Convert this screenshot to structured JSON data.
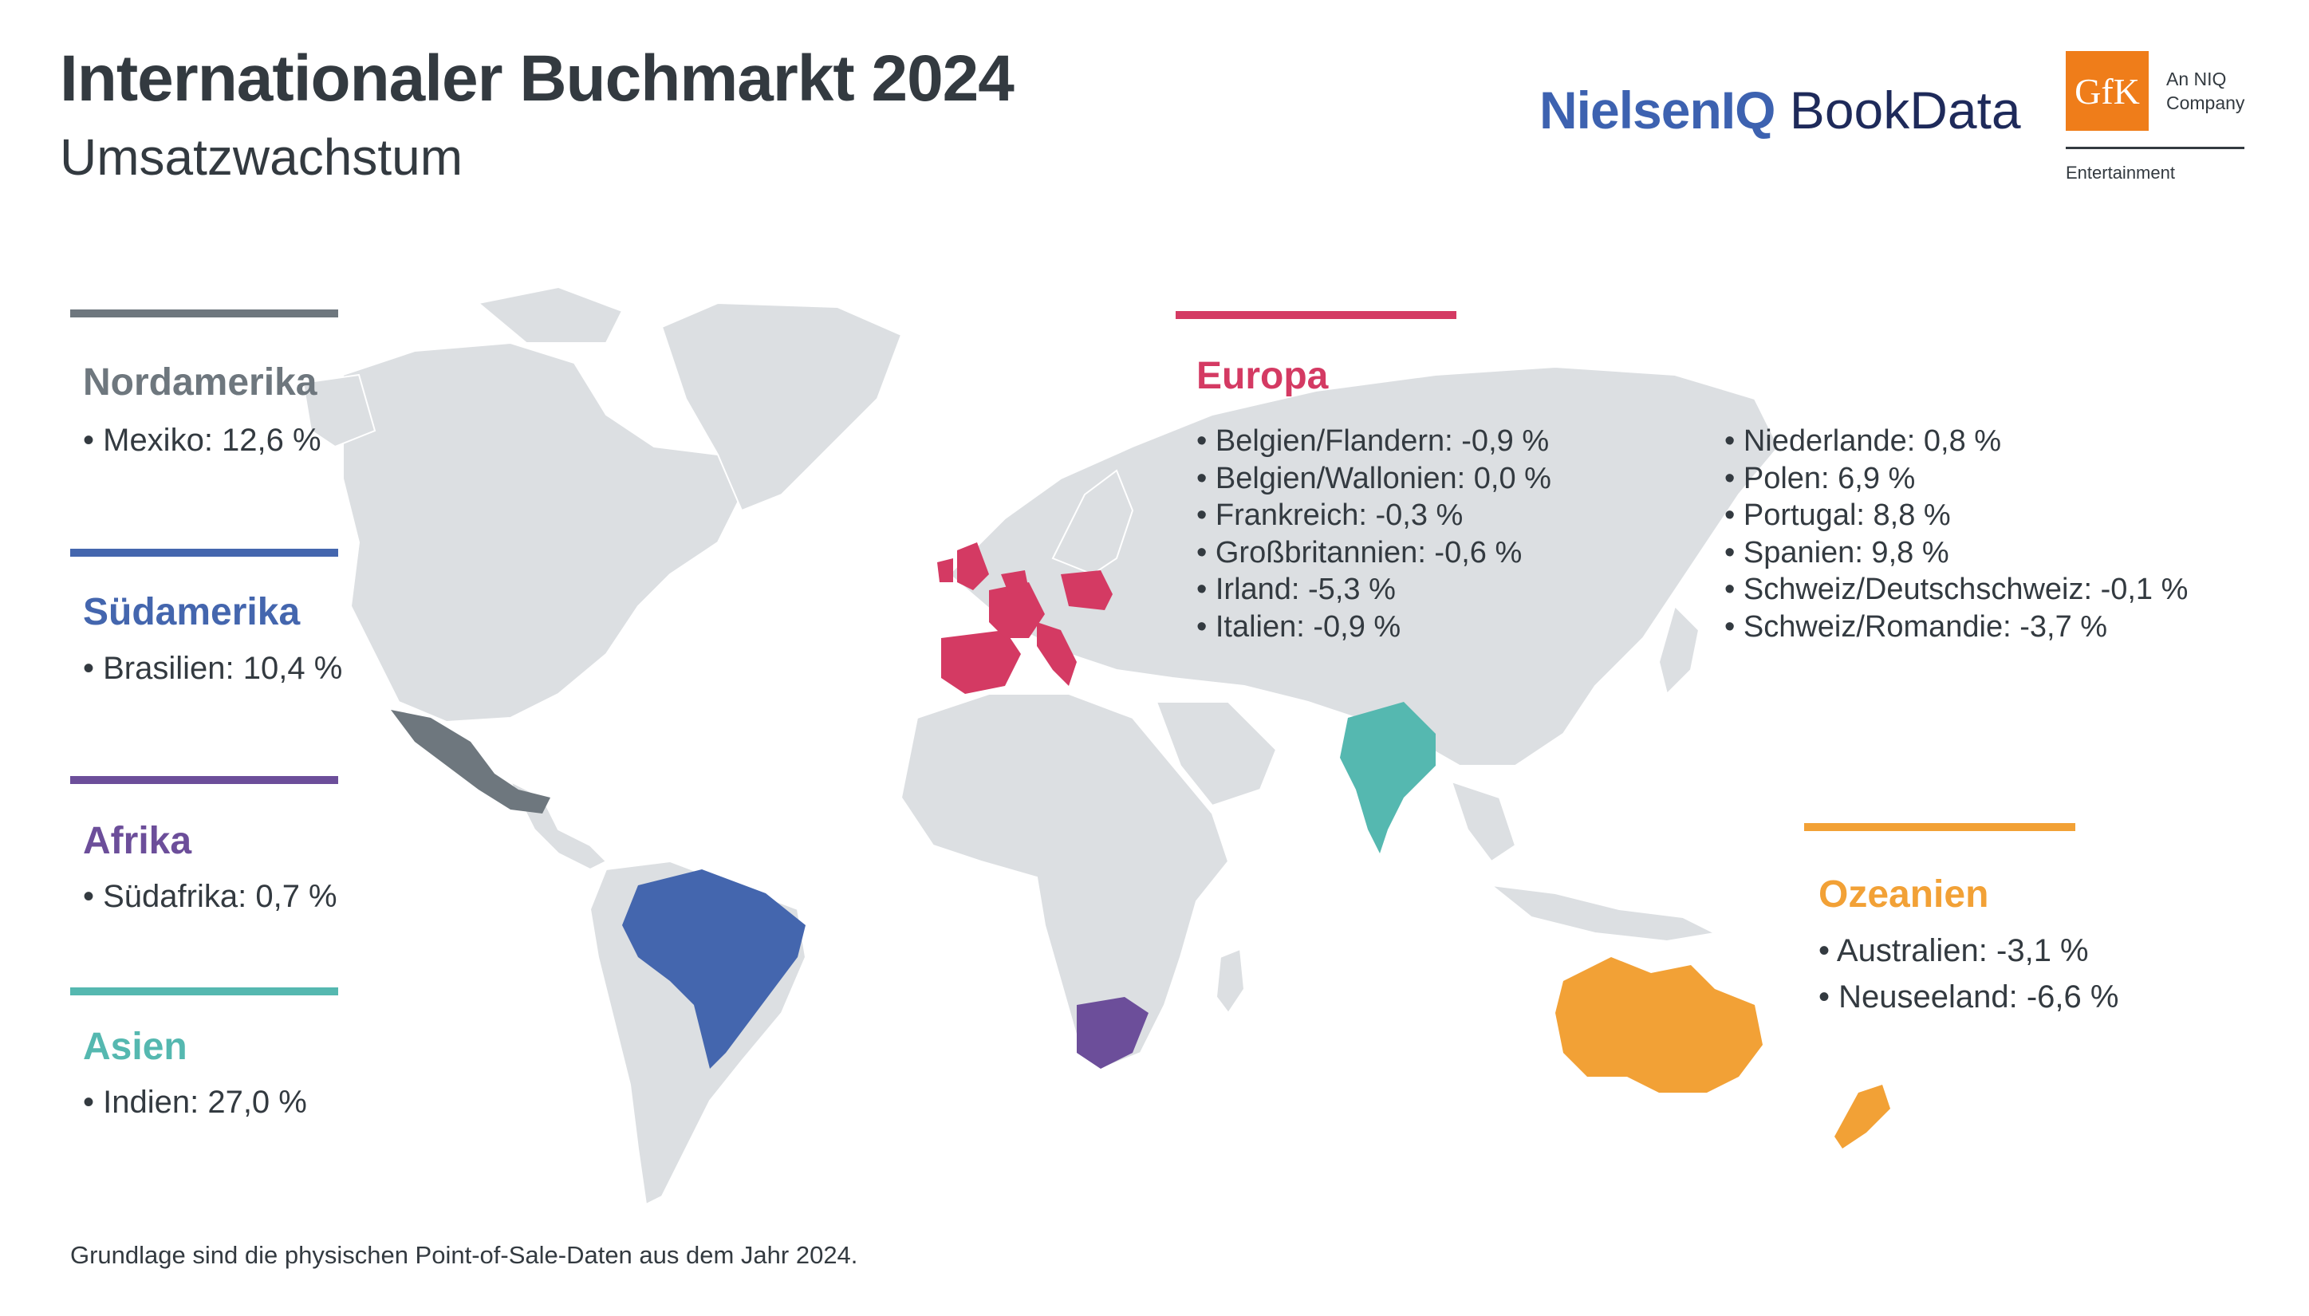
{
  "header": {
    "title": "Internationaler Buchmarkt 2024",
    "subtitle": "Umsatzwachstum"
  },
  "logos": {
    "nielsen_a": "NielsenIQ",
    "nielsen_b": "BookData",
    "gfk_mark": "GfK",
    "gfk_tag_1": "An NIQ",
    "gfk_tag_2": "Company",
    "gfk_division": "Entertainment"
  },
  "colors": {
    "nordamerika": "#6e777e",
    "suedamerika": "#4466ae",
    "afrika": "#6c4e9a",
    "asien": "#55b8b0",
    "europa": "#d43a63",
    "ozeanien": "#f2a136",
    "land": "#dcdfe2"
  },
  "regions": {
    "nordamerika": {
      "name": "Nordamerika",
      "items": [
        "• Mexiko: 12,6 %"
      ]
    },
    "suedamerika": {
      "name": "Südamerika",
      "items": [
        "• Brasilien: 10,4 %"
      ]
    },
    "afrika": {
      "name": "Afrika",
      "items": [
        "• Südafrika: 0,7 %"
      ]
    },
    "asien": {
      "name": "Asien",
      "items": [
        "• Indien: 27,0 %"
      ]
    },
    "europa": {
      "name": "Europa",
      "col1": [
        "• Belgien/Flandern: -0,9 %",
        "• Belgien/Wallonien: 0,0 %",
        "• Frankreich: -0,3 %",
        "• Großbritannien: -0,6 %",
        "• Irland: -5,3 %",
        "• Italien: -0,9 %"
      ],
      "col2": [
        "• Niederlande: 0,8 %",
        "• Polen: 6,9 %",
        "• Portugal: 8,8 %",
        "• Spanien: 9,8 %",
        "• Schweiz/Deutschschweiz: -0,1 %",
        "• Schweiz/Romandie: -3,7 %"
      ]
    },
    "ozeanien": {
      "name": "Ozeanien",
      "items": [
        "• Australien: -3,1 %",
        "• Neuseeland: -6,6 %"
      ]
    }
  },
  "footnote": "Grundlage sind die physischen Point-of-Sale-Daten aus dem Jahr 2024."
}
